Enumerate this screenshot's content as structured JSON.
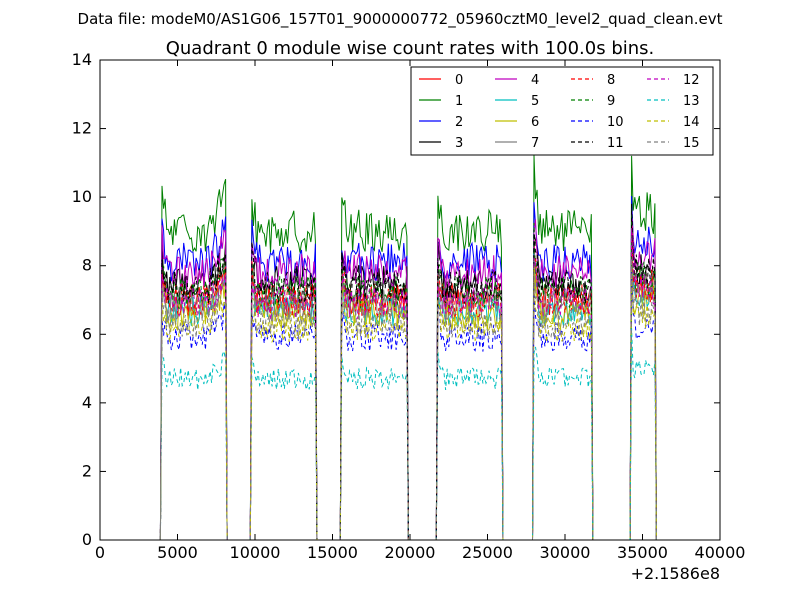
{
  "header": {
    "data_file": "Data file: modeM0/AS1G06_157T01_9000000772_05960cztM0_level2_quad_clean.evt"
  },
  "chart_data": {
    "type": "line",
    "title": "Quadrant 0 module wise count rates with 100.0s bins.",
    "xlabel": "",
    "ylabel": "",
    "x_offset_label": "+2.1586e8",
    "xlim": [
      0,
      40000
    ],
    "ylim": [
      0,
      14
    ],
    "xticks": [
      0,
      5000,
      10000,
      15000,
      20000,
      25000,
      30000,
      35000,
      40000
    ],
    "yticks": [
      0,
      2,
      4,
      6,
      8,
      10,
      12,
      14
    ],
    "bin_seconds": 100,
    "legend_position": "top-right",
    "segments": [
      [
        4000,
        8100
      ],
      [
        9800,
        13900
      ],
      [
        15600,
        19800
      ],
      [
        21800,
        25900
      ],
      [
        28000,
        31700
      ],
      [
        34300,
        35800
      ]
    ],
    "gap_edges": [
      [
        8100,
        8300
      ],
      [
        9600,
        9800
      ],
      [
        13900,
        14000
      ],
      [
        15500,
        15600
      ],
      [
        19800,
        19900
      ],
      [
        21700,
        21800
      ],
      [
        25900,
        26000
      ],
      [
        27900,
        28000
      ],
      [
        31700,
        31800
      ],
      [
        34200,
        34300
      ]
    ],
    "series": [
      {
        "name": "0",
        "color": "#ff0000",
        "dash": "solid",
        "level": 7.0
      },
      {
        "name": "1",
        "color": "#008000",
        "dash": "solid",
        "level": 9.0
      },
      {
        "name": "2",
        "color": "#0000ff",
        "dash": "solid",
        "level": 8.1
      },
      {
        "name": "3",
        "color": "#000000",
        "dash": "solid",
        "level": 7.5
      },
      {
        "name": "4",
        "color": "#bf00bf",
        "dash": "solid",
        "level": 7.8
      },
      {
        "name": "5",
        "color": "#00bfbf",
        "dash": "solid",
        "level": 6.7
      },
      {
        "name": "6",
        "color": "#bfbf00",
        "dash": "solid",
        "level": 6.6
      },
      {
        "name": "7",
        "color": "#808080",
        "dash": "solid",
        "level": 6.9
      },
      {
        "name": "8",
        "color": "#ff0000",
        "dash": "dashed",
        "level": 7.0
      },
      {
        "name": "9",
        "color": "#008000",
        "dash": "dashed",
        "level": 7.2
      },
      {
        "name": "10",
        "color": "#0000ff",
        "dash": "dashed",
        "level": 5.9
      },
      {
        "name": "11",
        "color": "#000000",
        "dash": "dashed",
        "level": 7.4
      },
      {
        "name": "12",
        "color": "#bf00bf",
        "dash": "dashed",
        "level": 6.9
      },
      {
        "name": "13",
        "color": "#00bfbf",
        "dash": "dashed",
        "level": 4.7
      },
      {
        "name": "14",
        "color": "#bfbf00",
        "dash": "dashed",
        "level": 6.2
      },
      {
        "name": "15",
        "color": "#808080",
        "dash": "dashed",
        "level": 6.3
      }
    ]
  }
}
